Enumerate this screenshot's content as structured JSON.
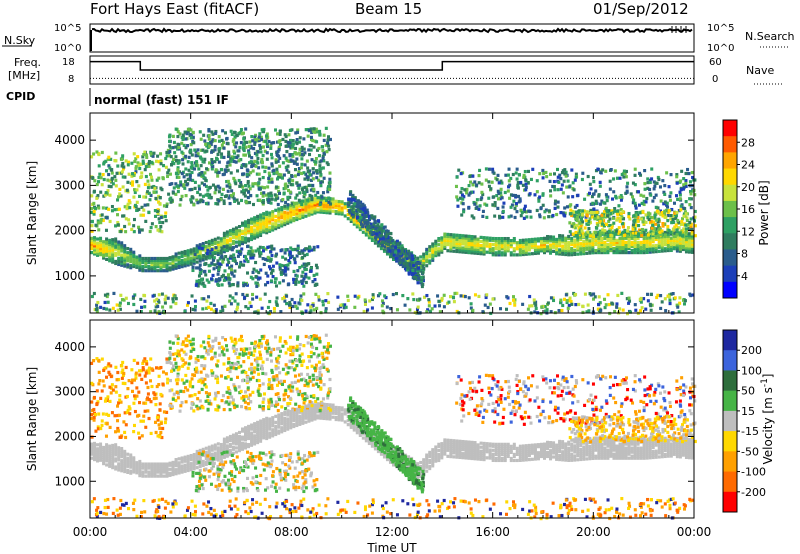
{
  "header": {
    "radar": "Fort Hays East (fitACF)",
    "beam": "Beam 15",
    "date": "01/Sep/2012"
  },
  "left_labels": {
    "nsky": "N.Sky",
    "freq": "Freq.",
    "freq_unit": "[MHz]",
    "cpid": "CPID"
  },
  "right_labels": {
    "nsearch": "N.Search",
    "nave": "Nave"
  },
  "noise_axis": {
    "left_ticks": [
      "10^5",
      "10^0"
    ],
    "right_ticks": [
      "10^5",
      "10^0"
    ]
  },
  "freq_axis": {
    "left_ticks": [
      "18",
      "8"
    ],
    "right_ticks": [
      "60",
      "0"
    ]
  },
  "cpid_text": "normal (fast) 151 IF",
  "chart_data": [
    {
      "type": "line",
      "panel": "noise",
      "series": [
        {
          "name": "N.Sky",
          "x": [
            0,
            24
          ],
          "values": [
            100000,
            100000
          ]
        }
      ],
      "ylim_labels": [
        "10^0",
        "10^5"
      ]
    },
    {
      "type": "line",
      "panel": "frequency",
      "series": [
        {
          "name": "Freq.",
          "x": [
            0,
            2,
            2,
            14,
            14,
            24
          ],
          "values": [
            16,
            16,
            13,
            13,
            16,
            16
          ]
        },
        {
          "name": "Nave",
          "x": [
            0,
            24
          ],
          "values": [
            12,
            12
          ]
        }
      ],
      "ylim_left": [
        8,
        18
      ],
      "ylim_right": [
        0,
        60
      ]
    },
    {
      "type": "heatmap",
      "panel": "power",
      "ylabel": "Slant Range [km]",
      "xlabel": "",
      "xlim": [
        0,
        24
      ],
      "ylim": [
        180,
        4600
      ],
      "yticks": [
        "1000",
        "2000",
        "3000",
        "4000"
      ],
      "colorbar": {
        "label": "Power [dB]",
        "ticks": [
          "28",
          "24",
          "20",
          "16",
          "12",
          "8",
          "4"
        ],
        "colors": [
          "#ff0000",
          "#ff5a00",
          "#ffa500",
          "#ffd800",
          "#c8e23c",
          "#6cc04a",
          "#2ea063",
          "#2f7c5f",
          "#2a5c8c",
          "#1c3fb8",
          "#0000ff"
        ]
      },
      "ridge": {
        "x": [
          0,
          1,
          2,
          3,
          4,
          5,
          6,
          7,
          8,
          9,
          10,
          11,
          12,
          13,
          14,
          15,
          16,
          17,
          18,
          19,
          20,
          21,
          22,
          23,
          24
        ],
        "lower_km": [
          1550,
          1300,
          1150,
          1150,
          1300,
          1500,
          1750,
          2000,
          2250,
          2450,
          2400,
          1900,
          1400,
          1100,
          1600,
          1550,
          1500,
          1500,
          1550,
          1500,
          1550,
          1550,
          1550,
          1600,
          1550
        ],
        "upper_km": [
          1900,
          1850,
          1450,
          1450,
          1650,
          1900,
          2200,
          2450,
          2650,
          2800,
          2700,
          2250,
          1800,
          1450,
          2000,
          1950,
          1900,
          1850,
          1900,
          1950,
          2000,
          2000,
          2000,
          2000,
          2000
        ],
        "peak_db": [
          26,
          20,
          18,
          18,
          18,
          20,
          22,
          24,
          26,
          26,
          26,
          24,
          22,
          20,
          22,
          22,
          22,
          22,
          22,
          22,
          22,
          22,
          22,
          22,
          22
        ]
      }
    },
    {
      "type": "heatmap",
      "panel": "velocity",
      "ylabel": "Slant Range [km]",
      "xlabel": "Time UT",
      "xlim": [
        0,
        24
      ],
      "ylim": [
        180,
        4600
      ],
      "yticks": [
        "1000",
        "2000",
        "3000",
        "4000"
      ],
      "xticks": [
        "00:00",
        "04:00",
        "08:00",
        "12:00",
        "16:00",
        "20:00",
        "00:00"
      ],
      "colorbar": {
        "label": "Velocity [m s^-1]",
        "ticks": [
          "200",
          "100",
          "50",
          "15",
          "-15",
          "-50",
          "-100",
          "-200"
        ],
        "colors": [
          "#1e28a0",
          "#3c64dc",
          "#2e6e3c",
          "#46b446",
          "#bebebe",
          "#ffd800",
          "#ffa000",
          "#ff6a00",
          "#ff0000"
        ]
      },
      "ground_scatter_color": "#bebebe",
      "positive_band": {
        "x_start": 10.2,
        "x_end": 13.2,
        "range_start_km": 2700,
        "range_end_km": 1000
      }
    }
  ],
  "colors": {
    "line": "#000000",
    "axis": "#000000"
  }
}
